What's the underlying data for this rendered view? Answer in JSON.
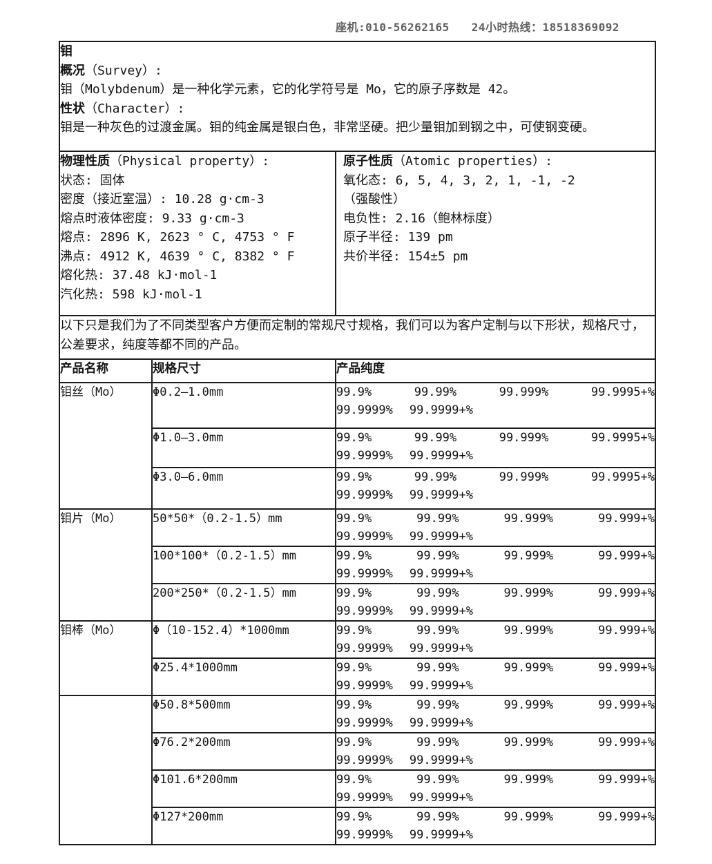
{
  "page": {
    "landline": "座机:010-56262165",
    "hotline": "24小时热线：18518369092"
  },
  "intro": {
    "title": "钼",
    "survey_heading": "概况",
    "survey_heading_en": "（Survey）:",
    "survey_text": "钼（Molybdenum）是一种化学元素，它的化学符号是 Mo，它的原子序数是 42。",
    "character_heading": "性状",
    "character_heading_en": "（Character）:",
    "character_text": "钼是一种灰色的过渡金属。钼的纯金属是银白色，非常坚硬。把少量钼加到钢之中，可使钢变硬。"
  },
  "physical_properties": {
    "heading": "物理性质",
    "heading_en": "（Physical property）:",
    "lines": [
      "状态: 固体",
      "密度（接近室温）: 10.28 g·cm-3",
      "熔点时液体密度: 9.33 g·cm-3",
      "熔点: 2896 K, 2623 ° C, 4753 ° F",
      "沸点: 4912 K, 4639 ° C, 8382 ° F",
      "熔化热: 37.48 kJ·mol-1",
      "汽化热: 598 kJ·mol-1"
    ]
  },
  "atomic_properties": {
    "heading": "原子性质",
    "heading_en": "（Atomic properties）:",
    "lines": [
      "氧化态: 6, 5, 4, 3, 2, 1, -1, -2",
      "（强酸性）",
      "电负性: 2.16（鲍林标度）",
      "原子半径: 139 pm",
      "共价半径: 154±5 pm"
    ]
  },
  "custom_note": "以下只是我们为了不同类型客户方便而定制的常规尺寸规格，我们可以为客户定制与以下形状，规格尺寸，公差要求，纯度等都不同的产品。",
  "products_table": {
    "headers": [
      "产品名称",
      "规格尺寸",
      "产品纯度"
    ],
    "groups": [
      {
        "name": "钼丝（Mo）",
        "rows": [
          {
            "spec": "Φ0.2—1.0mm",
            "purity_line1": [
              "99.9%",
              "99.99%",
              "99.999%",
              "99.9995+%"
            ],
            "purity_line2": [
              "99.9999%",
              "99.9999+%"
            ]
          },
          {
            "spec": "Φ1.0—3.0mm",
            "purity_line1": [
              "99.9%",
              "99.99%",
              "99.999%",
              "99.9995+%"
            ],
            "purity_line2": [
              "99.9999%",
              "99.9999+%"
            ]
          },
          {
            "spec": "Φ3.0—6.0mm",
            "purity_line1": [
              "99.9%",
              "99.99%",
              "99.999%",
              "99.9995+%"
            ],
            "purity_line2": [
              "99.9999%",
              "99.9999+%"
            ]
          }
        ]
      },
      {
        "name": "钼片（Mo）",
        "rows": [
          {
            "spec": "50*50*（0.2-1.5）mm",
            "purity_line1": [
              "99.9%",
              "99.99%",
              "99.999%",
              "99.999+%"
            ],
            "purity_line2": [
              "99.9999%",
              "99.9999+%"
            ]
          },
          {
            "spec": "100*100*（0.2-1.5）mm",
            "purity_line1": [
              "99.9%",
              "99.99%",
              "99.999%",
              "99.999+%"
            ],
            "purity_line2": [
              "99.9999%",
              "99.9999+%"
            ]
          },
          {
            "spec": "200*250*（0.2-1.5）mm",
            "purity_line1": [
              "99.9%",
              "99.99%",
              "99.999%",
              "99.999+%"
            ],
            "purity_line2": [
              "99.9999%",
              "99.9999+%"
            ]
          }
        ]
      },
      {
        "name": "钼棒（Mo）",
        "rows": [
          {
            "spec": "Φ（10-152.4）*1000mm",
            "purity_line1": [
              "99.9%",
              "99.99%",
              "99.999%",
              "99.999+%"
            ],
            "purity_line2": [
              "99.9999%",
              "99.9999+%"
            ]
          },
          {
            "spec": "Φ25.4*1000mm",
            "purity_line1": [
              "99.9%",
              "99.99%",
              "99.999%",
              "99.999+%"
            ],
            "purity_line2": [
              "99.9999%",
              "99.9999+%"
            ]
          }
        ]
      },
      {
        "name": "",
        "rows": [
          {
            "spec": "Φ50.8*500mm",
            "purity_line1": [
              "99.9%",
              "99.99%",
              "99.999%",
              "99.999+%"
            ],
            "purity_line2": [
              "99.9999%",
              "99.9999+%"
            ]
          },
          {
            "spec": "Φ76.2*200mm",
            "purity_line1": [
              "99.9%",
              "99.99%",
              "99.999%",
              "99.999+%"
            ],
            "purity_line2": [
              "99.9999%",
              "99.9999+%"
            ]
          },
          {
            "spec": "Φ101.6*200mm",
            "purity_line1": [
              "99.9%",
              "99.99%",
              "99.999%",
              "99.999+%"
            ],
            "purity_line2": [
              "99.9999%",
              "99.9999+%"
            ]
          },
          {
            "spec": "Φ127*200mm",
            "purity_line1": [
              "99.9%",
              "99.99%",
              "99.999%",
              "99.999+%"
            ],
            "purity_line2": [
              "99.9999%",
              "99.9999+%"
            ]
          }
        ]
      }
    ]
  }
}
